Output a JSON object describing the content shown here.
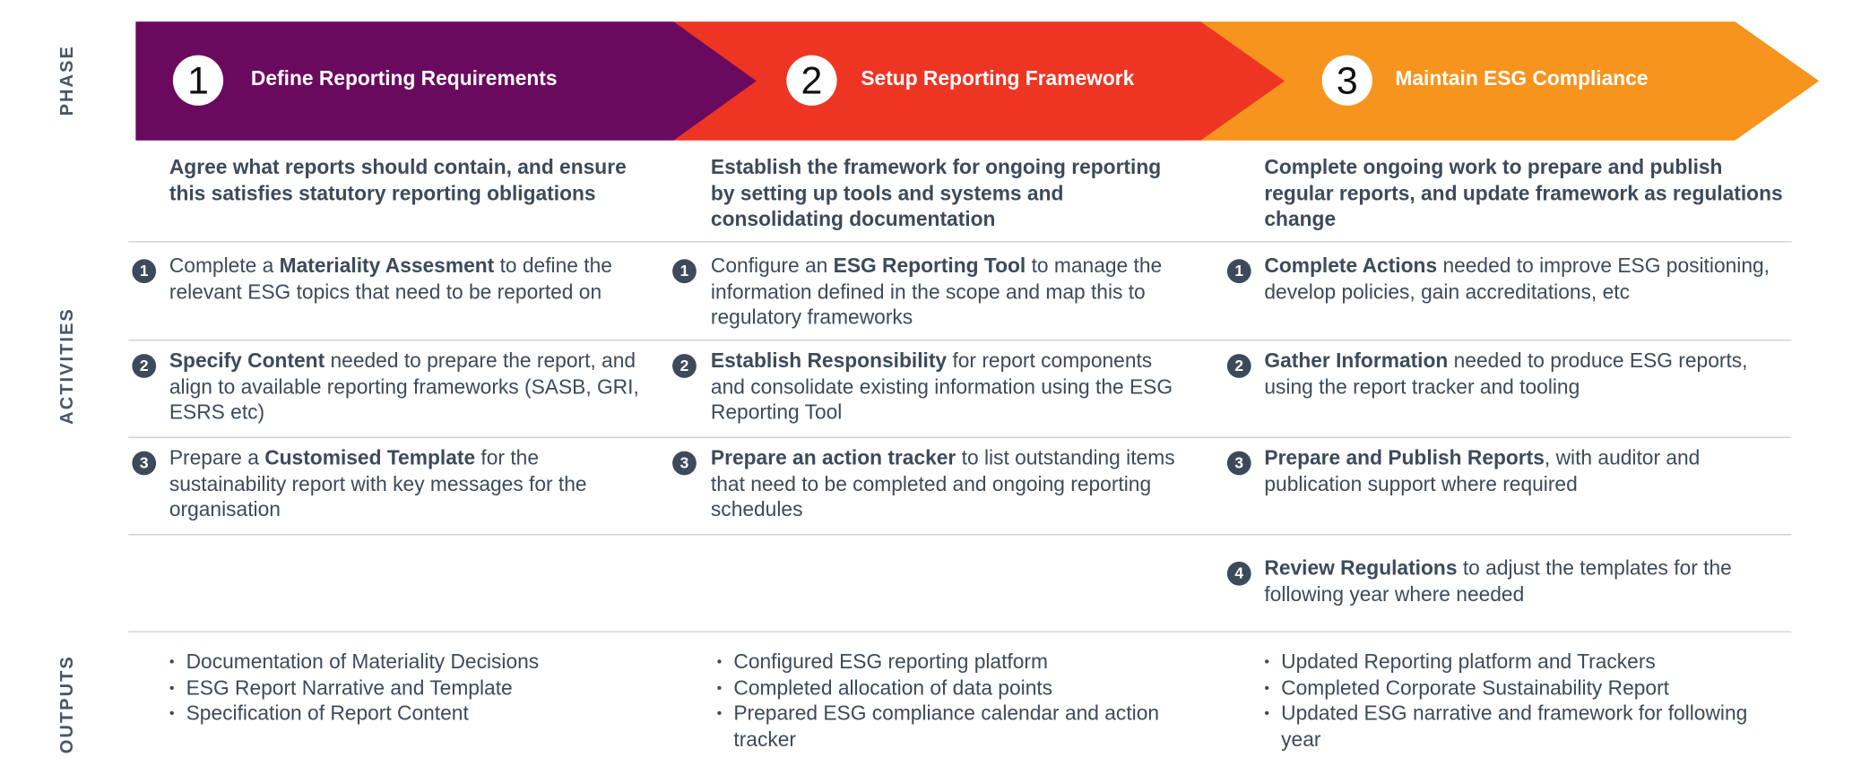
{
  "labels": {
    "phase": "PHASE",
    "activities": "ACTIVITIES",
    "outputs": "OUTPUTS"
  },
  "phases": [
    {
      "number": "1",
      "title": "Define Reporting Requirements",
      "summary": "Agree what reports should contain, and ensure this satisfies statutory reporting obligations",
      "activities": [
        {
          "number": "1",
          "parts": [
            {
              "text": "Complete a "
            },
            {
              "text": "Materiality Assesment",
              "bold": true
            },
            {
              "text": " to define the relevant ESG topics that need to be reported on"
            }
          ]
        },
        {
          "number": "2",
          "parts": [
            {
              "text": "Specify Content",
              "bold": true
            },
            {
              "text": " needed to prepare the report, and align to available reporting frameworks (SASB, GRI, ESRS etc)"
            }
          ]
        },
        {
          "number": "3",
          "parts": [
            {
              "text": "Prepare a "
            },
            {
              "text": "Customised Template",
              "bold": true
            },
            {
              "text": " for the sustainability report with key messages for the organisation"
            }
          ]
        }
      ],
      "outputs": [
        "Documentation of Materiality Decisions",
        "ESG Report Narrative and Template",
        "Specification of Report Content"
      ]
    },
    {
      "number": "2",
      "title": "Setup Reporting Framework",
      "summary": "Establish the framework for ongoing reporting by setting up tools and systems and consolidating documentation",
      "activities": [
        {
          "number": "1",
          "parts": [
            {
              "text": "Configure an "
            },
            {
              "text": "ESG Reporting Tool",
              "bold": true
            },
            {
              "text": " to manage the information defined in the scope and map this to regulatory frameworks"
            }
          ]
        },
        {
          "number": "2",
          "parts": [
            {
              "text": "Establish Responsibility",
              "bold": true
            },
            {
              "text": " for report components and consolidate existing information using the ESG Reporting Tool"
            }
          ]
        },
        {
          "number": "3",
          "parts": [
            {
              "text": "Prepare an action tracker",
              "bold": true
            },
            {
              "text": " to list outstanding items that need to be completed and ongoing reporting schedules"
            }
          ]
        }
      ],
      "outputs": [
        "Configured ESG reporting platform",
        "Completed allocation of data points",
        "Prepared ESG compliance calendar and action tracker"
      ]
    },
    {
      "number": "3",
      "title": "Maintain ESG Compliance",
      "summary": "Complete ongoing work to prepare and publish regular reports, and update framework as regulations change",
      "activities": [
        {
          "number": "1",
          "parts": [
            {
              "text": "Complete Actions",
              "bold": true
            },
            {
              "text": " needed to improve ESG positioning, develop policies, gain accreditations, etc"
            }
          ]
        },
        {
          "number": "2",
          "parts": [
            {
              "text": "Gather Information",
              "bold": true
            },
            {
              "text": " needed to produce ESG reports, using the report tracker and tooling"
            }
          ]
        },
        {
          "number": "3",
          "parts": [
            {
              "text": "Prepare and Publish Reports",
              "bold": true
            },
            {
              "text": ", with auditor and publication support where required"
            }
          ]
        },
        {
          "number": "4",
          "parts": [
            {
              "text": "Review Regulations",
              "bold": true
            },
            {
              "text": " to adjust the templates for the following year where needed"
            }
          ]
        }
      ],
      "outputs": [
        "Updated Reporting platform and Trackers",
        "Completed Corporate Sustainability Report",
        "Updated ESG narrative and framework for following year"
      ]
    }
  ]
}
